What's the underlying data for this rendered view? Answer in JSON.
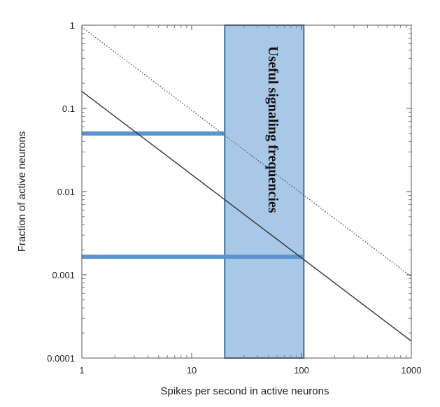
{
  "chart_data": {
    "type": "line",
    "title": "",
    "xlabel": "Spikes per second in active neurons",
    "ylabel": "Fraction of active neurons",
    "xscale": "log",
    "yscale": "log",
    "xlim": [
      1,
      1000
    ],
    "ylim": [
      0.0001,
      1
    ],
    "x_ticks": [
      1,
      10,
      100,
      1000
    ],
    "x_tick_labels": [
      "1",
      "10",
      "100",
      "1000"
    ],
    "y_ticks": [
      0.0001,
      0.001,
      0.01,
      0.1,
      1
    ],
    "y_tick_labels": [
      "0.0001",
      "0.001",
      "0.01",
      "0.1",
      "1"
    ],
    "grid": false,
    "legend": "none",
    "series": [
      {
        "style": "solid",
        "color": "#333333",
        "x": [
          1,
          1000
        ],
        "y": [
          0.16,
          0.00016
        ]
      },
      {
        "style": "dotted",
        "color": "#555555",
        "x": [
          1,
          1000
        ],
        "y": [
          0.95,
          0.00095
        ]
      }
    ],
    "shaded_band": {
      "x_range": [
        20,
        105
      ],
      "y_range": [
        0.0001,
        1
      ],
      "fill": "#a9c8e8",
      "stroke": "#3f6f97",
      "label": "Useful signaling frequencies"
    },
    "reference_lines": [
      {
        "y": 0.05,
        "x_range": [
          1,
          20
        ],
        "color": "#5b93cc"
      },
      {
        "y": 0.00165,
        "x_range": [
          1,
          105
        ],
        "color": "#5b93cc"
      }
    ]
  }
}
